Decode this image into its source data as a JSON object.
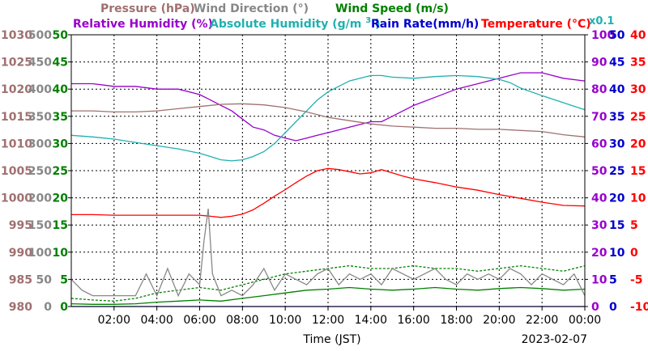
{
  "chart_data": {
    "type": "line",
    "date": "2023-02-07",
    "xlabel": "Time (JST)",
    "x_ticks": [
      "02:00",
      "04:00",
      "06:00",
      "08:00",
      "10:00",
      "12:00",
      "14:00",
      "16:00",
      "18:00",
      "20:00",
      "22:00",
      "00:00"
    ],
    "x_range_hours": [
      0,
      24
    ],
    "grid": true,
    "legend": {
      "row1": [
        {
          "id": "pressure",
          "label": "Pressure (hPa)",
          "color": "#a07070"
        },
        {
          "id": "wind_dir",
          "label": "Wind Direction (°)",
          "color": "#888888"
        },
        {
          "id": "wind_speed",
          "label": "Wind Speed (m/s)",
          "color": "#008000"
        }
      ],
      "row2": [
        {
          "id": "rh",
          "label": "Relative Humidity (%)",
          "color": "#9900cc"
        },
        {
          "id": "ah",
          "label": "Absolute Humidity (g/m",
          "sup": "3",
          "tail": ")",
          "color": "#20b0b0"
        },
        {
          "id": "rain",
          "label": "Rain Rate(mm/h)",
          "color": "#0000cc"
        },
        {
          "id": "temp",
          "label": "Temperature (°C)",
          "color": "#ff0000"
        }
      ],
      "factor_note": "x0.1"
    },
    "axes": {
      "pressure": {
        "color": "#a07070",
        "range": [
          980,
          1030
        ],
        "ticks": [
          "980",
          "985",
          "990",
          "995",
          "1000",
          "1005",
          "1010",
          "1015",
          "1020",
          "1025",
          "1030"
        ]
      },
      "wind_dir": {
        "color": "#888888",
        "range": [
          0,
          500
        ],
        "ticks": [
          "0",
          "50",
          "100",
          "150",
          "200",
          "250",
          "300",
          "350",
          "400",
          "450",
          "500"
        ]
      },
      "wind_speed": {
        "color": "#008000",
        "range": [
          0,
          50
        ],
        "ticks": [
          "0",
          "5",
          "10",
          "15",
          "20",
          "25",
          "30",
          "35",
          "40",
          "45",
          "50"
        ]
      },
      "rh": {
        "color": "#9900cc",
        "range": [
          0,
          100
        ],
        "ticks": [
          "0",
          "10",
          "20",
          "30",
          "40",
          "50",
          "60",
          "70",
          "80",
          "90",
          "100"
        ]
      },
      "rain": {
        "color": "#0000cc",
        "range": [
          0,
          50
        ],
        "ticks": [
          "0",
          "5",
          "10",
          "15",
          "20",
          "25",
          "30",
          "35",
          "40",
          "45",
          "50"
        ]
      },
      "temp": {
        "color": "#ff0000",
        "range": [
          -10,
          40
        ],
        "ticks": [
          "-10",
          "-5",
          "0",
          "5",
          "10",
          "15",
          "20",
          "25",
          "30",
          "35",
          "40"
        ]
      }
    },
    "series": [
      {
        "id": "rh",
        "axis": "rh",
        "color": "#9900cc",
        "x": [
          0,
          1,
          2,
          3,
          4,
          5,
          6,
          6.5,
          7,
          7.5,
          8,
          8.5,
          9,
          9.5,
          10,
          10.5,
          11,
          11.5,
          12,
          12.5,
          13,
          13.5,
          14,
          14.5,
          15,
          15.5,
          16,
          17,
          18,
          19,
          20,
          20.5,
          21,
          22,
          23,
          24
        ],
        "y": [
          82,
          82,
          81,
          81,
          80,
          80,
          78,
          76,
          74,
          72,
          69,
          66,
          65,
          63,
          62,
          61,
          62,
          63,
          64,
          65,
          66,
          67,
          68,
          68,
          70,
          72,
          74,
          77,
          80,
          82,
          84,
          85,
          86,
          86,
          84,
          83
        ]
      },
      {
        "id": "ah",
        "axis": "wind_speed",
        "color": "#20b0b0",
        "x": [
          0,
          1,
          2,
          3,
          4,
          5,
          6,
          6.5,
          7,
          7.5,
          8,
          8.5,
          9,
          9.5,
          10,
          10.5,
          11,
          11.5,
          12,
          12.5,
          13,
          13.5,
          14,
          14.5,
          15,
          16,
          17,
          18,
          19,
          20,
          20.5,
          21,
          22,
          23,
          24
        ],
        "y": [
          31.5,
          31.2,
          30.8,
          30.2,
          29.6,
          29.0,
          28.2,
          27.6,
          27.0,
          26.8,
          27.0,
          27.6,
          28.5,
          30.0,
          32.0,
          34.0,
          36.0,
          38.0,
          39.5,
          40.5,
          41.5,
          42.0,
          42.5,
          42.5,
          42.2,
          42.0,
          42.3,
          42.5,
          42.3,
          41.8,
          41.2,
          40.2,
          38.8,
          37.5,
          36.2
        ]
      },
      {
        "id": "pressure",
        "axis": "pressure",
        "color": "#a07070",
        "x": [
          0,
          1,
          2,
          3,
          4,
          5,
          6,
          7,
          8,
          9,
          10,
          11,
          12,
          13,
          14,
          15,
          16,
          17,
          18,
          19,
          20,
          21,
          22,
          23,
          24
        ],
        "y": [
          1016.0,
          1016.0,
          1015.8,
          1015.8,
          1016.0,
          1016.4,
          1016.8,
          1017.2,
          1017.3,
          1017.1,
          1016.6,
          1015.8,
          1014.8,
          1014.2,
          1013.6,
          1013.2,
          1013.0,
          1012.8,
          1012.8,
          1012.6,
          1012.6,
          1012.4,
          1012.2,
          1011.6,
          1011.2
        ]
      },
      {
        "id": "temp",
        "axis": "temp",
        "color": "#ff0000",
        "x": [
          0,
          1,
          2,
          3,
          4,
          5,
          6,
          6.5,
          7,
          7.5,
          8,
          8.5,
          9,
          9.5,
          10,
          10.5,
          11,
          11.5,
          12,
          12.5,
          13,
          13.5,
          14,
          14.5,
          15,
          15.5,
          16,
          17,
          18,
          19,
          20,
          21,
          22,
          23,
          24
        ],
        "y": [
          6.9,
          6.9,
          6.8,
          6.8,
          6.8,
          6.8,
          6.8,
          6.6,
          6.4,
          6.6,
          7.0,
          7.8,
          9.0,
          10.3,
          11.5,
          12.8,
          14.0,
          15.0,
          15.4,
          15.2,
          14.8,
          14.4,
          14.6,
          15.2,
          14.6,
          14.0,
          13.5,
          12.8,
          12.0,
          11.4,
          10.6,
          9.9,
          9.2,
          8.6,
          8.5
        ]
      },
      {
        "id": "wind_speed_mean",
        "axis": "wind_speed",
        "color": "#008000",
        "x": [
          0,
          1,
          2,
          3,
          4,
          5,
          6,
          7,
          8,
          9,
          10,
          11,
          12,
          13,
          14,
          15,
          16,
          17,
          18,
          19,
          20,
          21,
          22,
          23,
          24
        ],
        "y": [
          0.5,
          0.4,
          0.4,
          0.5,
          0.8,
          1.0,
          1.2,
          1.0,
          1.5,
          2.0,
          2.5,
          3.0,
          3.2,
          3.5,
          3.2,
          3.0,
          3.2,
          3.5,
          3.2,
          3.0,
          3.3,
          3.5,
          3.3,
          3.0,
          3.2
        ]
      },
      {
        "id": "wind_speed_gust",
        "axis": "wind_speed",
        "color": "#008000",
        "dashed": true,
        "x": [
          0,
          1,
          2,
          3,
          4,
          5,
          6,
          7,
          8,
          9,
          10,
          11,
          12,
          13,
          14,
          15,
          16,
          17,
          18,
          19,
          20,
          21,
          22,
          23,
          24
        ],
        "y": [
          1.5,
          1.2,
          1.0,
          1.5,
          2.5,
          3.0,
          3.5,
          3.0,
          4.0,
          5.0,
          6.0,
          6.5,
          7.0,
          7.5,
          7.0,
          7.0,
          7.5,
          7.0,
          7.0,
          6.5,
          7.0,
          7.5,
          7.0,
          6.5,
          7.5
        ]
      },
      {
        "id": "wind_dir",
        "axis": "wind_dir",
        "color": "#888888",
        "x": [
          0,
          0.5,
          1,
          1.5,
          2,
          2.5,
          3,
          3.5,
          4,
          4.5,
          5,
          5.5,
          6,
          6.2,
          6.4,
          6.6,
          7,
          7.5,
          8,
          8.5,
          9,
          9.5,
          10,
          10.5,
          11,
          11.5,
          12,
          12.5,
          13,
          13.5,
          14,
          14.5,
          15,
          15.5,
          16,
          16.5,
          17,
          17.5,
          18,
          18.5,
          19,
          19.5,
          20,
          20.5,
          21,
          21.5,
          22,
          22.5,
          23,
          23.5,
          24
        ],
        "y": [
          50,
          30,
          20,
          20,
          20,
          20,
          20,
          60,
          20,
          70,
          20,
          60,
          40,
          120,
          180,
          60,
          20,
          30,
          20,
          40,
          70,
          30,
          60,
          50,
          40,
          60,
          70,
          40,
          60,
          50,
          60,
          40,
          70,
          60,
          50,
          60,
          70,
          50,
          40,
          60,
          50,
          60,
          50,
          70,
          60,
          40,
          60,
          50,
          40,
          60,
          20
        ]
      },
      {
        "id": "rain",
        "axis": "rain",
        "color": "#0000cc",
        "x": [
          0,
          24
        ],
        "y": [
          0,
          0
        ]
      }
    ]
  }
}
